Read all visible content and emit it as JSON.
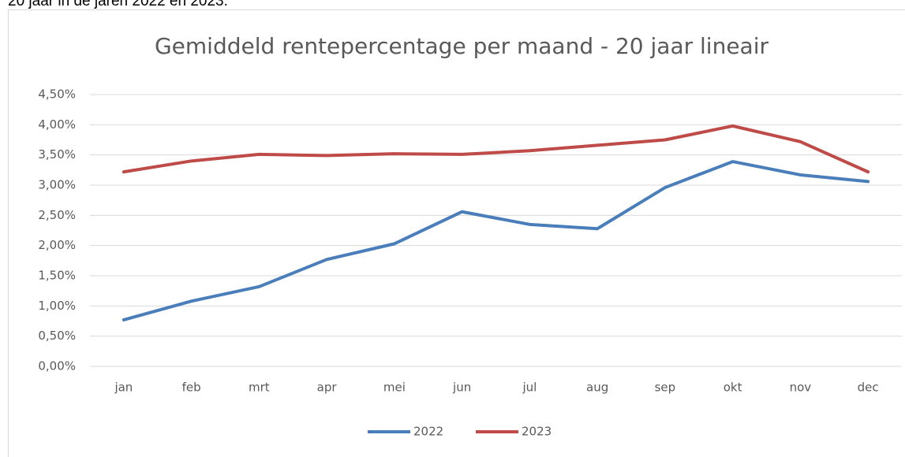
{
  "intro": "20 jaar in de jaren 2022 en 2023.",
  "chart_data": {
    "type": "line",
    "title": "Gemiddeld rentepercentage per maand - 20 jaar lineair",
    "categories": [
      "jan",
      "feb",
      "mrt",
      "apr",
      "mei",
      "jun",
      "jul",
      "aug",
      "sep",
      "okt",
      "nov",
      "dec"
    ],
    "series": [
      {
        "name": "2022",
        "color": "#4a7ebb",
        "values": [
          0.77,
          1.08,
          1.32,
          1.77,
          2.03,
          2.56,
          2.35,
          2.28,
          2.96,
          3.39,
          3.17,
          3.06
        ]
      },
      {
        "name": "2023",
        "color": "#be4b48",
        "values": [
          3.22,
          3.4,
          3.51,
          3.49,
          3.52,
          3.51,
          3.57,
          3.66,
          3.75,
          3.98,
          3.72,
          3.22
        ]
      }
    ],
    "ylim": [
      0,
      4.5
    ],
    "yticks": [
      {
        "value": 0,
        "label": "0,00%"
      },
      {
        "value": 0.5,
        "label": "0,50%"
      },
      {
        "value": 1,
        "label": "1,00%"
      },
      {
        "value": 1.5,
        "label": "1,50%"
      },
      {
        "value": 2,
        "label": "2,00%"
      },
      {
        "value": 2.5,
        "label": "2,50%"
      },
      {
        "value": 3,
        "label": "3,00%"
      },
      {
        "value": 3.5,
        "label": "3,50%"
      },
      {
        "value": 4,
        "label": "4,00%"
      },
      {
        "value": 4.5,
        "label": "4,50%"
      }
    ],
    "grid": true,
    "legend": "bottom"
  }
}
